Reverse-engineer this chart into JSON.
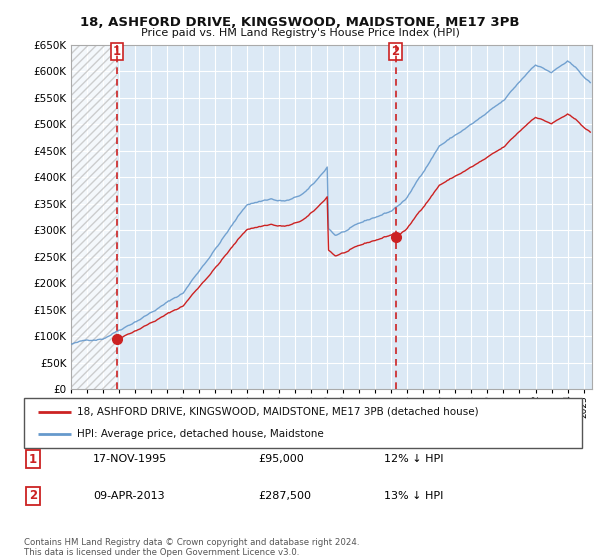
{
  "title": "18, ASHFORD DRIVE, KINGSWOOD, MAIDSTONE, ME17 3PB",
  "subtitle": "Price paid vs. HM Land Registry's House Price Index (HPI)",
  "ylim": [
    0,
    650000
  ],
  "yticks": [
    0,
    50000,
    100000,
    150000,
    200000,
    250000,
    300000,
    350000,
    400000,
    450000,
    500000,
    550000,
    600000,
    650000
  ],
  "background_color": "#ffffff",
  "chart_bg_color": "#dce9f5",
  "grid_color": "#ffffff",
  "sale1_x": 1995.88,
  "sale1_price": 95000,
  "sale2_x": 2013.27,
  "sale2_price": 287500,
  "legend_line1": "18, ASHFORD DRIVE, KINGSWOOD, MAIDSTONE, ME17 3PB (detached house)",
  "legend_line2": "HPI: Average price, detached house, Maidstone",
  "table_row1": [
    "1",
    "17-NOV-1995",
    "£95,000",
    "12% ↓ HPI"
  ],
  "table_row2": [
    "2",
    "09-APR-2013",
    "£287,500",
    "13% ↓ HPI"
  ],
  "footer": "Contains HM Land Registry data © Crown copyright and database right 2024.\nThis data is licensed under the Open Government Licence v3.0.",
  "hpi_color": "#6699cc",
  "price_color": "#cc2222",
  "vline_color": "#cc2222",
  "marker_color": "#cc2222",
  "xlim_start": 1993,
  "xlim_end": 2025.5
}
